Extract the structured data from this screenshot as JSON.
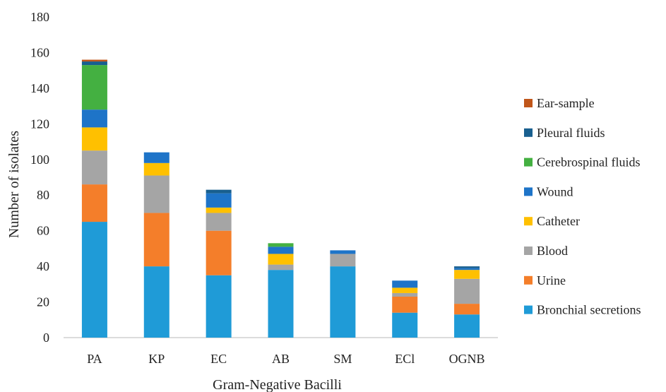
{
  "chart_data": {
    "type": "bar",
    "stacked": true,
    "title": "",
    "xlabel": "Gram-Negative Bacilli",
    "ylabel": "Number of isolates",
    "ylim": [
      0,
      180
    ],
    "yticks": [
      0,
      20,
      40,
      60,
      80,
      100,
      120,
      140,
      160,
      180
    ],
    "grid": false,
    "legend_position": "right",
    "categories": [
      "PA",
      "KP",
      "EC",
      "AB",
      "SM",
      "ECl",
      "OGNB"
    ],
    "series": [
      {
        "name": "Bronchial secretions",
        "color": "#1f9bd7",
        "values": [
          65,
          40,
          35,
          38,
          40,
          14,
          13
        ]
      },
      {
        "name": "Urine",
        "color": "#f47e2a",
        "values": [
          21,
          30,
          25,
          0,
          0,
          9,
          6
        ]
      },
      {
        "name": "Blood",
        "color": "#a5a5a5",
        "values": [
          19,
          21,
          10,
          3,
          7,
          2,
          14
        ]
      },
      {
        "name": "Catheter",
        "color": "#ffc000",
        "values": [
          13,
          7,
          3,
          6,
          0,
          3,
          5
        ]
      },
      {
        "name": "Wound",
        "color": "#1e74c8",
        "values": [
          10,
          6,
          8,
          4,
          2,
          4,
          1
        ]
      },
      {
        "name": "Cerebrospinal fluids",
        "color": "#44b041",
        "values": [
          25,
          0,
          0,
          2,
          0,
          0,
          0
        ]
      },
      {
        "name": "Pleural fluids",
        "color": "#185f8f",
        "values": [
          2,
          0,
          2,
          0,
          0,
          0,
          1
        ]
      },
      {
        "name": "Ear-sample",
        "color": "#c0561a",
        "values": [
          1,
          0,
          0,
          0,
          0,
          0,
          0
        ]
      }
    ]
  }
}
